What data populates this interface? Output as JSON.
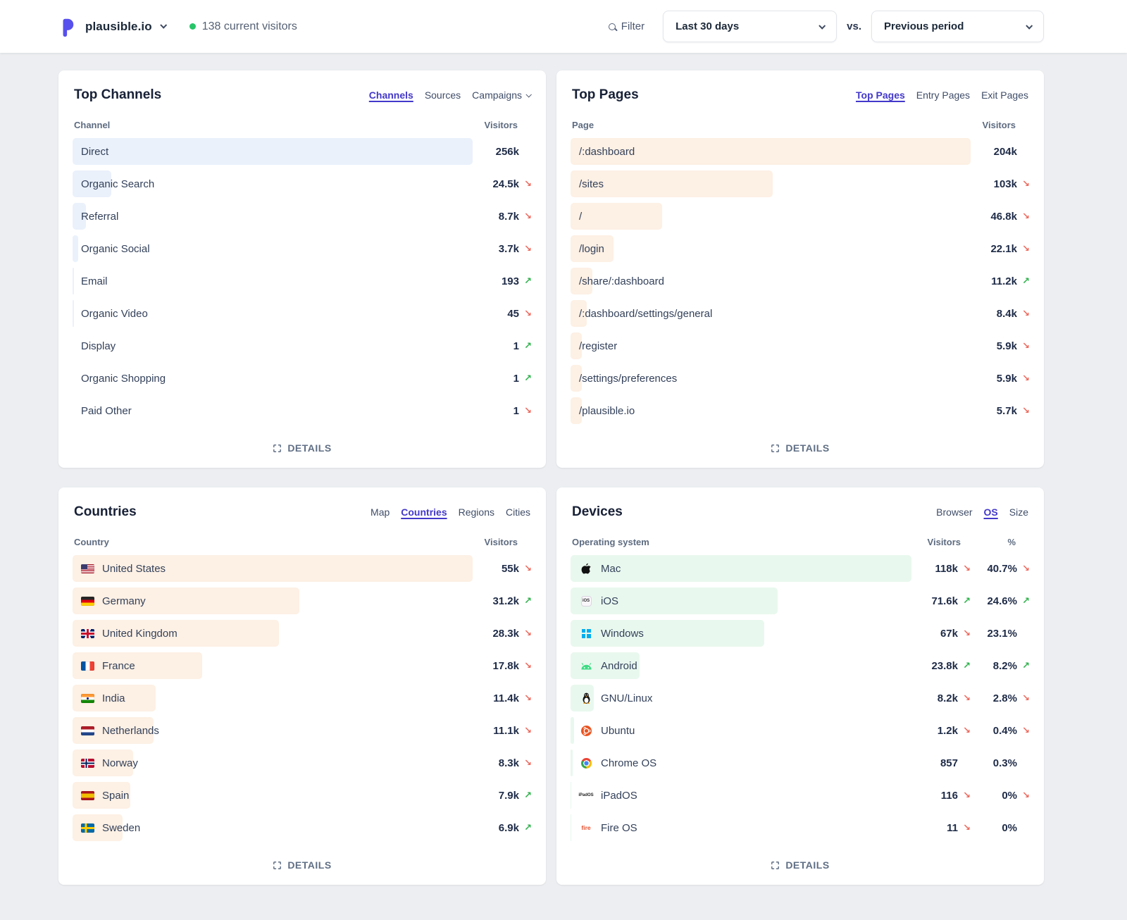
{
  "header": {
    "site_name": "plausible.io",
    "live_label": "138 current visitors",
    "filter_label": "Filter",
    "period": "Last 30 days",
    "vs_label": "vs.",
    "compare": "Previous period"
  },
  "colors": {
    "accent_indigo": "#4338ca",
    "bar_blue": "#eaf1fb",
    "bar_orange": "#fdf0e4",
    "bar_green": "#e9f8ee",
    "trend_up_green": "#2fb24c",
    "trend_down_red": "#ec6a5e",
    "live_dot_green": "#27c468"
  },
  "panels": {
    "channels": {
      "title": "Top Channels",
      "tabs": [
        {
          "label": "Channels",
          "active": true
        },
        {
          "label": "Sources",
          "active": false
        },
        {
          "label": "Campaigns",
          "active": false,
          "chevron": true
        }
      ],
      "columns": {
        "name": "Channel",
        "visitors": "Visitors"
      },
      "rows": [
        {
          "label": "Direct",
          "value": "256k",
          "trend": "",
          "bar_pct": 100
        },
        {
          "label": "Organic Search",
          "value": "24.5k",
          "trend": "↘",
          "bar_pct": 9.6
        },
        {
          "label": "Referral",
          "value": "8.7k",
          "trend": "↘",
          "bar_pct": 3.4
        },
        {
          "label": "Organic Social",
          "value": "3.7k",
          "trend": "↘",
          "bar_pct": 1.4
        },
        {
          "label": "Email",
          "value": "193",
          "trend": "↗",
          "bar_pct": 0.35
        },
        {
          "label": "Organic Video",
          "value": "45",
          "trend": "↘",
          "bar_pct": 0.3
        },
        {
          "label": "Display",
          "value": "1",
          "trend": "↗",
          "bar_pct": 0
        },
        {
          "label": "Organic Shopping",
          "value": "1",
          "trend": "↗",
          "bar_pct": 0
        },
        {
          "label": "Paid Other",
          "value": "1",
          "trend": "↘",
          "bar_pct": 0
        }
      ],
      "details_label": "DETAILS"
    },
    "pages": {
      "title": "Top Pages",
      "tabs": [
        {
          "label": "Top Pages",
          "active": true
        },
        {
          "label": "Entry Pages",
          "active": false
        },
        {
          "label": "Exit Pages",
          "active": false
        }
      ],
      "columns": {
        "name": "Page",
        "visitors": "Visitors"
      },
      "rows": [
        {
          "label": "/:dashboard",
          "value": "204k",
          "trend": "",
          "bar_pct": 100
        },
        {
          "label": "/sites",
          "value": "103k",
          "trend": "↘",
          "bar_pct": 50.5
        },
        {
          "label": "/",
          "value": "46.8k",
          "trend": "↘",
          "bar_pct": 22.9
        },
        {
          "label": "/login",
          "value": "22.1k",
          "trend": "↘",
          "bar_pct": 10.8
        },
        {
          "label": "/share/:dashboard",
          "value": "11.2k",
          "trend": "↗",
          "bar_pct": 5.5
        },
        {
          "label": "/:dashboard/settings/general",
          "value": "8.4k",
          "trend": "↘",
          "bar_pct": 4.1
        },
        {
          "label": "/register",
          "value": "5.9k",
          "trend": "↘",
          "bar_pct": 2.9
        },
        {
          "label": "/settings/preferences",
          "value": "5.9k",
          "trend": "↘",
          "bar_pct": 2.9
        },
        {
          "label": "/plausible.io",
          "value": "5.7k",
          "trend": "↘",
          "bar_pct": 2.8
        }
      ],
      "details_label": "DETAILS"
    },
    "countries": {
      "title": "Countries",
      "tabs": [
        {
          "label": "Map",
          "active": false
        },
        {
          "label": "Countries",
          "active": true
        },
        {
          "label": "Regions",
          "active": false
        },
        {
          "label": "Cities",
          "active": false
        }
      ],
      "columns": {
        "name": "Country",
        "visitors": "Visitors"
      },
      "rows": [
        {
          "flag": "us",
          "label": "United States",
          "value": "55k",
          "trend": "↘",
          "bar_pct": 100
        },
        {
          "flag": "de",
          "label": "Germany",
          "value": "31.2k",
          "trend": "↗",
          "bar_pct": 56.7
        },
        {
          "flag": "gb",
          "label": "United Kingdom",
          "value": "28.3k",
          "trend": "↘",
          "bar_pct": 51.5
        },
        {
          "flag": "fr",
          "label": "France",
          "value": "17.8k",
          "trend": "↘",
          "bar_pct": 32.4
        },
        {
          "flag": "in",
          "label": "India",
          "value": "11.4k",
          "trend": "↘",
          "bar_pct": 20.7
        },
        {
          "flag": "nl",
          "label": "Netherlands",
          "value": "11.1k",
          "trend": "↘",
          "bar_pct": 20.2
        },
        {
          "flag": "no",
          "label": "Norway",
          "value": "8.3k",
          "trend": "↘",
          "bar_pct": 15.1
        },
        {
          "flag": "es",
          "label": "Spain",
          "value": "7.9k",
          "trend": "↗",
          "bar_pct": 14.4
        },
        {
          "flag": "se",
          "label": "Sweden",
          "value": "6.9k",
          "trend": "↗",
          "bar_pct": 12.5
        }
      ],
      "details_label": "DETAILS"
    },
    "devices": {
      "title": "Devices",
      "tabs": [
        {
          "label": "Browser",
          "active": false
        },
        {
          "label": "OS",
          "active": true
        },
        {
          "label": "Size",
          "active": false
        }
      ],
      "columns": {
        "name": "Operating system",
        "visitors": "Visitors",
        "percent": "%"
      },
      "rows": [
        {
          "icon": "mac",
          "label": "Mac",
          "visitors": "118k",
          "visitors_trend": "↘",
          "percent": "40.7%",
          "percent_trend": "↘",
          "bar_pct": 100
        },
        {
          "icon": "ios",
          "label": "iOS",
          "icon_label": "iOS",
          "visitors": "71.6k",
          "visitors_trend": "↗",
          "percent": "24.6%",
          "percent_trend": "↗",
          "bar_pct": 60.7
        },
        {
          "icon": "windows",
          "label": "Windows",
          "visitors": "67k",
          "visitors_trend": "↘",
          "percent": "23.1%",
          "percent_trend": "",
          "bar_pct": 56.8
        },
        {
          "icon": "android",
          "label": "Android",
          "visitors": "23.8k",
          "visitors_trend": "↗",
          "percent": "8.2%",
          "percent_trend": "↗",
          "bar_pct": 20.2
        },
        {
          "icon": "linux",
          "label": "GNU/Linux",
          "visitors": "8.2k",
          "visitors_trend": "↘",
          "percent": "2.8%",
          "percent_trend": "↘",
          "bar_pct": 6.9
        },
        {
          "icon": "ubuntu",
          "label": "Ubuntu",
          "visitors": "1.2k",
          "visitors_trend": "↘",
          "percent": "0.4%",
          "percent_trend": "↘",
          "bar_pct": 1.0
        },
        {
          "icon": "chromeos",
          "label": "Chrome OS",
          "visitors": "857",
          "visitors_trend": "",
          "percent": "0.3%",
          "percent_trend": "",
          "bar_pct": 0.7
        },
        {
          "icon": "ipados",
          "label": "iPadOS",
          "icon_label": "iPadOS",
          "visitors": "116",
          "visitors_trend": "↘",
          "percent": "0%",
          "percent_trend": "↘",
          "bar_pct": 0.3
        },
        {
          "icon": "fireos",
          "label": "Fire OS",
          "icon_label": "fire",
          "visitors": "11",
          "visitors_trend": "↘",
          "percent": "0%",
          "percent_trend": "",
          "bar_pct": 0.1
        }
      ],
      "details_label": "DETAILS"
    }
  }
}
